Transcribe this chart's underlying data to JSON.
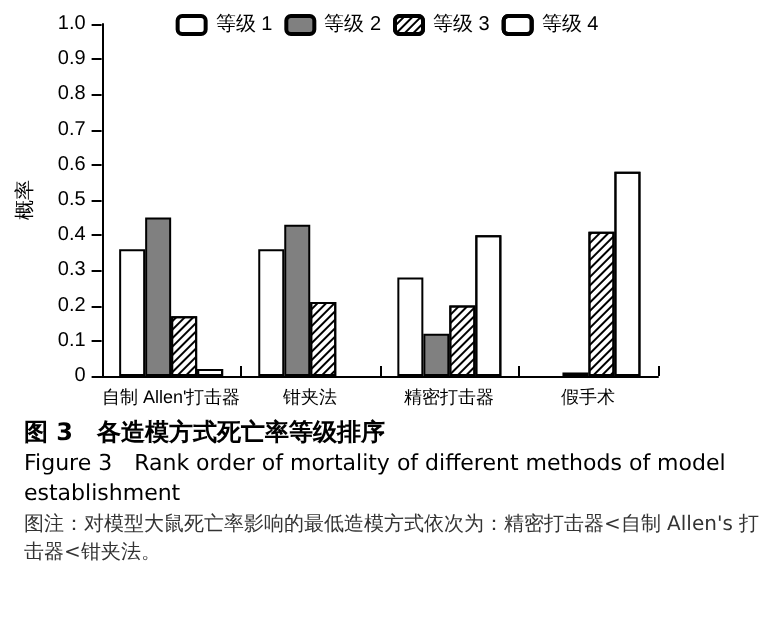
{
  "chart_data": {
    "type": "bar",
    "title": "图 3　各造模方式死亡率等级排序",
    "subtitle": "Figure 3　Rank order of mortality of different methods of model establishment",
    "ylabel": "概率",
    "annotations": [
      "图注：对模型大鼠死亡率影响的最低造模方式依次为：精密打击器<自制 Allen's 打击器<钳夹法。"
    ],
    "categories": [
      "自制 Allen'打击器",
      "钳夹法",
      "精密打击器",
      "假手术"
    ],
    "series": [
      {
        "name": "等级 1",
        "color": "#ffffff",
        "values": [
          0.36,
          0.36,
          0.28,
          null
        ]
      },
      {
        "name": "等级 2",
        "color": "#808080",
        "values": [
          0.45,
          0.43,
          0.12,
          0.01
        ]
      },
      {
        "name": "等级 3",
        "color": "#ffffff",
        "values": [
          0.17,
          0.21,
          0.2,
          0.41
        ]
      },
      {
        "name": "等级 4",
        "color": "#ffffff",
        "values": [
          0.02,
          null,
          0.4,
          0.58
        ]
      }
    ],
    "ylim": [
      0,
      1.0
    ],
    "yticks": [
      0,
      0.1,
      0.2,
      0.3,
      0.4,
      0.5,
      0.6,
      0.7,
      0.8,
      0.9,
      {
        "value": 1,
        "label": "1.0"
      }
    ],
    "grid": false,
    "legend": "top"
  }
}
